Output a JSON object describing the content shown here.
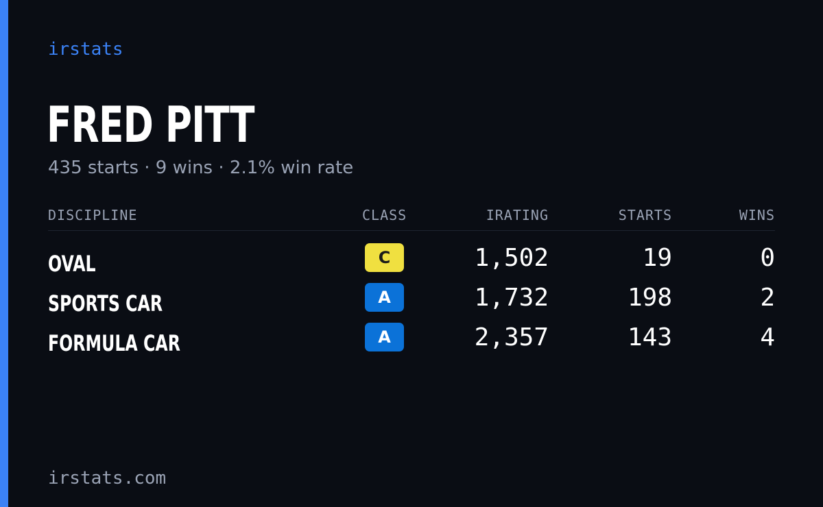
{
  "brand": "irstats",
  "driver": {
    "name": "FRED PITT",
    "summary": "435 starts · 9 wins · 2.1% win rate"
  },
  "table": {
    "headers": {
      "discipline": "DISCIPLINE",
      "class": "CLASS",
      "irating": "IRATING",
      "starts": "STARTS",
      "wins": "WINS"
    },
    "rows": [
      {
        "discipline": "OVAL",
        "class": "C",
        "class_color": "#f0e040",
        "class_text_color": "#1a1a1a",
        "irating": "1,502",
        "starts": "19",
        "wins": "0"
      },
      {
        "discipline": "SPORTS CAR",
        "class": "A",
        "class_color": "#0b72d8",
        "class_text_color": "#ffffff",
        "irating": "1,732",
        "starts": "198",
        "wins": "2"
      },
      {
        "discipline": "FORMULA CAR",
        "class": "A",
        "class_color": "#0b72d8",
        "class_text_color": "#ffffff",
        "irating": "2,357",
        "starts": "143",
        "wins": "4"
      }
    ]
  },
  "footer": "irstats.com",
  "colors": {
    "background": "#0a0d14",
    "accent": "#3b82f6",
    "muted": "#9aa3b5",
    "text": "#ffffff"
  }
}
